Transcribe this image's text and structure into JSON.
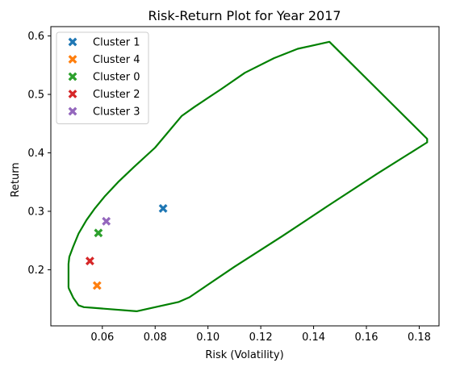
{
  "chart_data": {
    "type": "scatter",
    "title": "Risk-Return Plot for Year 2017",
    "xlabel": "Risk (Volatility)",
    "ylabel": "Return",
    "xlim": [
      0.0405,
      0.1875
    ],
    "ylim": [
      0.104,
      0.616
    ],
    "xticks": [
      0.06,
      0.08,
      0.1,
      0.12,
      0.14,
      0.16,
      0.18
    ],
    "yticks": [
      0.2,
      0.3,
      0.4,
      0.5,
      0.6
    ],
    "xtick_labels": [
      "0.06",
      "0.08",
      "0.10",
      "0.12",
      "0.14",
      "0.16",
      "0.18"
    ],
    "ytick_labels": [
      "0.2",
      "0.3",
      "0.4",
      "0.5",
      "0.6"
    ],
    "grid": false,
    "legend_position": "top-left",
    "marker": "X",
    "series": [
      {
        "name": "Cluster 1",
        "color": "#1f77b4",
        "x": [
          0.083
        ],
        "y": [
          0.305
        ]
      },
      {
        "name": "Cluster 4",
        "color": "#ff7f0e",
        "x": [
          0.058
        ],
        "y": [
          0.173
        ]
      },
      {
        "name": "Cluster 0",
        "color": "#2ca02c",
        "x": [
          0.0585
        ],
        "y": [
          0.263
        ]
      },
      {
        "name": "Cluster 2",
        "color": "#d62728",
        "x": [
          0.0553
        ],
        "y": [
          0.215
        ]
      },
      {
        "name": "Cluster 3",
        "color": "#9467bd",
        "x": [
          0.0615
        ],
        "y": [
          0.283
        ]
      }
    ],
    "frontier": {
      "color": "#008000",
      "x": [
        0.0472,
        0.0472,
        0.0475,
        0.049,
        0.051,
        0.054,
        0.057,
        0.061,
        0.066,
        0.072,
        0.08,
        0.09,
        0.095,
        0.105,
        0.114,
        0.125,
        0.134,
        0.146,
        0.183,
        0.183,
        0.164,
        0.146,
        0.128,
        0.11,
        0.093,
        0.089,
        0.073,
        0.056,
        0.053,
        0.051,
        0.049,
        0.0473,
        0.0472
      ],
      "y": [
        0.17,
        0.21,
        0.222,
        0.24,
        0.262,
        0.285,
        0.304,
        0.326,
        0.35,
        0.376,
        0.409,
        0.463,
        0.479,
        0.509,
        0.537,
        0.562,
        0.578,
        0.59,
        0.424,
        0.418,
        0.364,
        0.311,
        0.257,
        0.205,
        0.153,
        0.145,
        0.129,
        0.135,
        0.136,
        0.139,
        0.152,
        0.168,
        0.17
      ]
    }
  }
}
